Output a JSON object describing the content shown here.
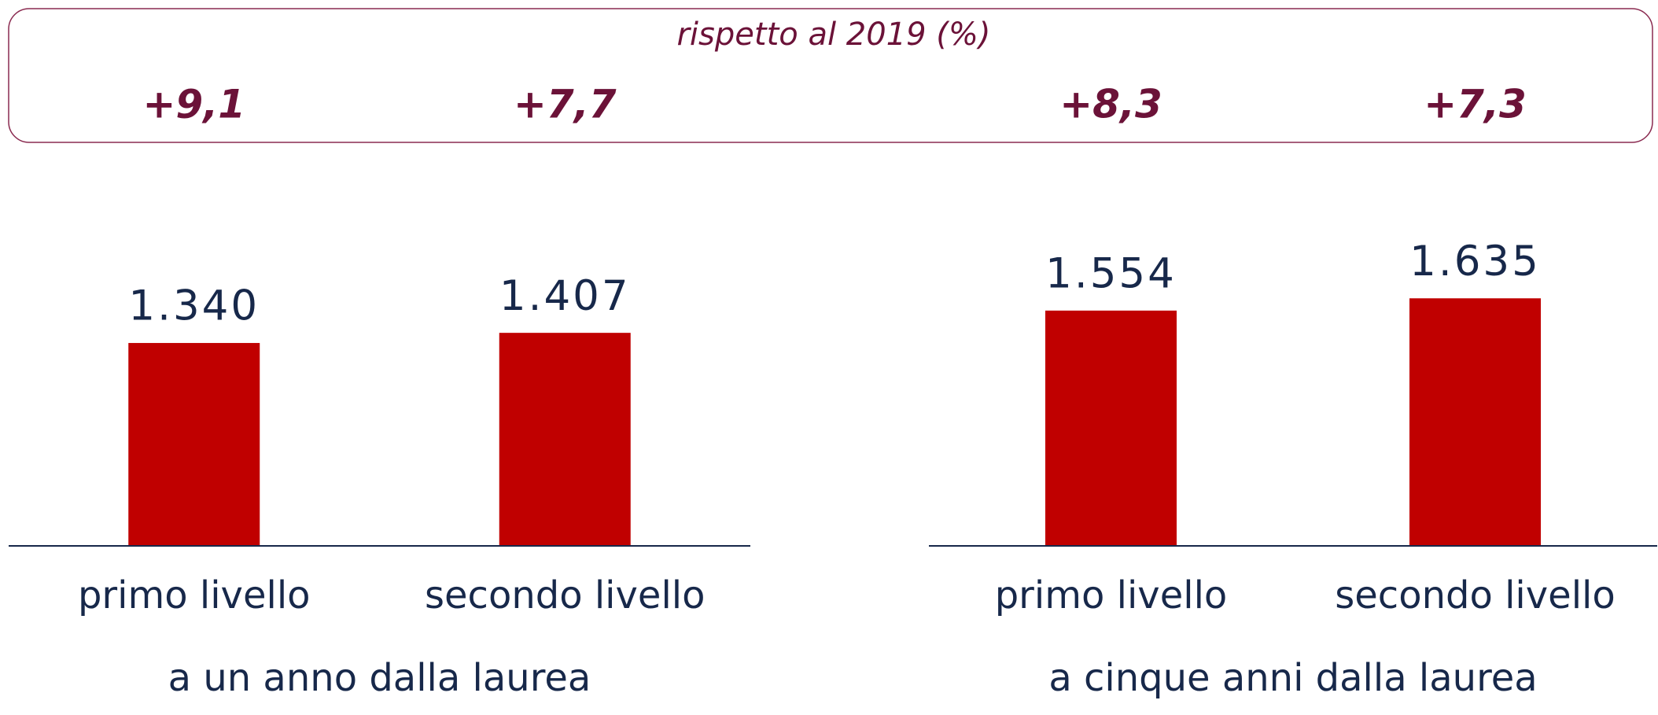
{
  "header": {
    "title": "rispetto al 2019 (%)"
  },
  "chart_data": [
    {
      "type": "bar",
      "categories": [
        "primo livello",
        "secondo livello"
      ],
      "values": [
        1340,
        1407
      ],
      "value_labels": [
        "1.340",
        "1.407"
      ],
      "change_values": [
        9.1,
        7.7
      ],
      "change_labels": [
        "+9,1",
        "+7,7"
      ],
      "xlabel": "a un anno dalla laurea",
      "color": "#c00000",
      "ylim": [
        0,
        2000
      ]
    },
    {
      "type": "bar",
      "categories": [
        "primo livello",
        "secondo livello"
      ],
      "values": [
        1554,
        1635
      ],
      "value_labels": [
        "1.554",
        "1.635"
      ],
      "change_values": [
        8.3,
        7.3
      ],
      "change_labels": [
        "+8,3",
        "+7,3"
      ],
      "xlabel": "a cinque anni dalla laurea",
      "color": "#c00000",
      "ylim": [
        0,
        2000
      ]
    }
  ]
}
